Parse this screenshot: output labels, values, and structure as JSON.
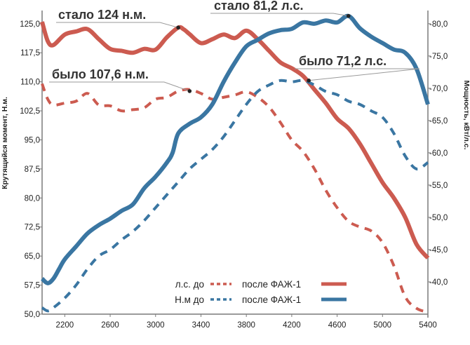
{
  "chart_data": {
    "type": "line",
    "title": "",
    "xlabel": "",
    "ylabel_left": "Крутящийся момент, Н.м.",
    "ylabel_right": "Мощность, кВт/л.с.",
    "xlim": [
      2000,
      5400
    ],
    "ylim_left": [
      50,
      127.5
    ],
    "ylim_right": [
      35,
      81.5
    ],
    "x_ticks": [
      "2200",
      "2600",
      "3000",
      "3400",
      "3800",
      "4200",
      "4600",
      "5000",
      "5400"
    ],
    "y_left_ticks": [
      "50,0",
      "57,5",
      "65,0",
      "72,5",
      "80,0",
      "87,5",
      "95,0",
      "102,5",
      "110,0",
      "117,5",
      "125,0"
    ],
    "y_right_ticks": [
      "-40,0",
      "-45,0",
      "-50,0",
      "-55,0",
      "-60,0",
      "-65,0",
      "-70,0",
      "-75,0",
      "-80,0"
    ],
    "colors": {
      "torque": "#cc5b50",
      "power": "#3a76a2"
    },
    "series": [
      {
        "name": "после ФАЖ-1",
        "legend_key": "torque_after",
        "quantity": "torque",
        "axis": "left",
        "style": "solid",
        "x": [
          2000,
          2050,
          2100,
          2200,
          2300,
          2400,
          2500,
          2600,
          2700,
          2800,
          2900,
          3000,
          3100,
          3200,
          3250,
          3300,
          3400,
          3500,
          3600,
          3700,
          3800,
          3900,
          4000,
          4100,
          4200,
          4300,
          4400,
          4500,
          4600,
          4700,
          4800,
          4900,
          5000,
          5100,
          5200,
          5300,
          5400
        ],
        "y": [
          125.5,
          120.5,
          119.5,
          122.2,
          123.0,
          123.6,
          121.0,
          118.5,
          118.0,
          117.5,
          118.5,
          118.3,
          121.5,
          124.0,
          123.5,
          122.3,
          120.0,
          121.0,
          122.2,
          121.3,
          123.2,
          121.0,
          118.0,
          115.0,
          113.5,
          111.5,
          108.0,
          104.5,
          100.5,
          98.0,
          94.0,
          89.0,
          84.0,
          80.0,
          75.0,
          68.0,
          64.5
        ]
      },
      {
        "name": "л.с. до",
        "legend_key": "torque_before",
        "quantity": "torque",
        "axis": "left",
        "style": "dashed",
        "x": [
          2000,
          2050,
          2100,
          2200,
          2300,
          2400,
          2500,
          2600,
          2700,
          2800,
          2900,
          3000,
          3100,
          3200,
          3300,
          3400,
          3500,
          3600,
          3700,
          3800,
          3900,
          4000,
          4100,
          4200,
          4300,
          4400,
          4500,
          4600,
          4700,
          4800,
          4900,
          5000,
          5100,
          5200,
          5300,
          5400
        ],
        "y": [
          109.5,
          105.5,
          104.0,
          104.5,
          105.0,
          107.0,
          104.0,
          103.8,
          102.5,
          102.8,
          103.3,
          105.5,
          106.0,
          107.6,
          108.0,
          107.0,
          105.5,
          106.0,
          106.6,
          107.4,
          106.0,
          103.5,
          99.5,
          95.0,
          92.0,
          87.5,
          82.0,
          77.5,
          74.0,
          72.5,
          71.5,
          68.5,
          62.5,
          54.5,
          51.5,
          50.5
        ]
      },
      {
        "name": "после ФАЖ-1",
        "legend_key": "power_after",
        "quantity": "power",
        "axis": "right",
        "style": "solid",
        "x": [
          2000,
          2050,
          2100,
          2150,
          2200,
          2300,
          2400,
          2500,
          2600,
          2700,
          2800,
          2900,
          3000,
          3100,
          3150,
          3200,
          3300,
          3400,
          3500,
          3600,
          3700,
          3800,
          3900,
          4000,
          4100,
          4200,
          4300,
          4400,
          4500,
          4600,
          4700,
          4800,
          4900,
          5000,
          5100,
          5200,
          5300,
          5400
        ],
        "y": [
          40.5,
          39.8,
          40.5,
          42.0,
          43.5,
          45.5,
          47.5,
          48.8,
          49.8,
          51.0,
          52.0,
          54.5,
          56.3,
          58.5,
          60.0,
          63.0,
          64.5,
          65.5,
          67.5,
          71.0,
          74.0,
          76.5,
          77.5,
          78.5,
          79.0,
          79.2,
          80.2,
          80.0,
          80.5,
          80.2,
          81.2,
          79.3,
          78.0,
          77.0,
          76.0,
          75.5,
          73.0,
          67.5
        ]
      },
      {
        "name": "Н.м до",
        "legend_key": "power_before",
        "quantity": "power",
        "axis": "right",
        "style": "dashed",
        "x": [
          2000,
          2050,
          2100,
          2200,
          2300,
          2400,
          2500,
          2600,
          2700,
          2800,
          2900,
          3000,
          3100,
          3200,
          3300,
          3400,
          3500,
          3600,
          3700,
          3800,
          3900,
          4000,
          4100,
          4200,
          4300,
          4400,
          4500,
          4600,
          4700,
          4800,
          4900,
          5000,
          5100,
          5200,
          5300,
          5400
        ],
        "y": [
          36.0,
          35.5,
          36.0,
          37.5,
          39.5,
          42.0,
          44.0,
          45.0,
          46.5,
          47.8,
          49.5,
          51.5,
          53.5,
          55.5,
          57.5,
          59.0,
          60.5,
          62.5,
          65.0,
          67.5,
          69.5,
          70.5,
          71.2,
          71.0,
          71.2,
          70.5,
          69.5,
          69.0,
          68.0,
          67.5,
          66.5,
          65.5,
          63.0,
          59.5,
          57.5,
          58.5
        ]
      }
    ],
    "annotations": [
      {
        "text": "стало 124 н.м.",
        "x": 3200,
        "axis": "left",
        "y": 124.0
      },
      {
        "text": "было 107,6 н.м.",
        "x": 3300,
        "axis": "left",
        "y": 107.6
      },
      {
        "text": "стало 81,2 л.с.",
        "x": 4700,
        "axis": "right",
        "y": 81.2
      },
      {
        "text": "было 71,2 л.с.",
        "x": 4350,
        "axis": "right",
        "y": 71.2
      }
    ],
    "legend": {
      "position": "bottom-center",
      "before_labels": [
        "л.с. до",
        "Н.м до"
      ],
      "after_labels": [
        "после ФАЖ-1",
        "после ФАЖ-1"
      ]
    },
    "grid": false
  }
}
